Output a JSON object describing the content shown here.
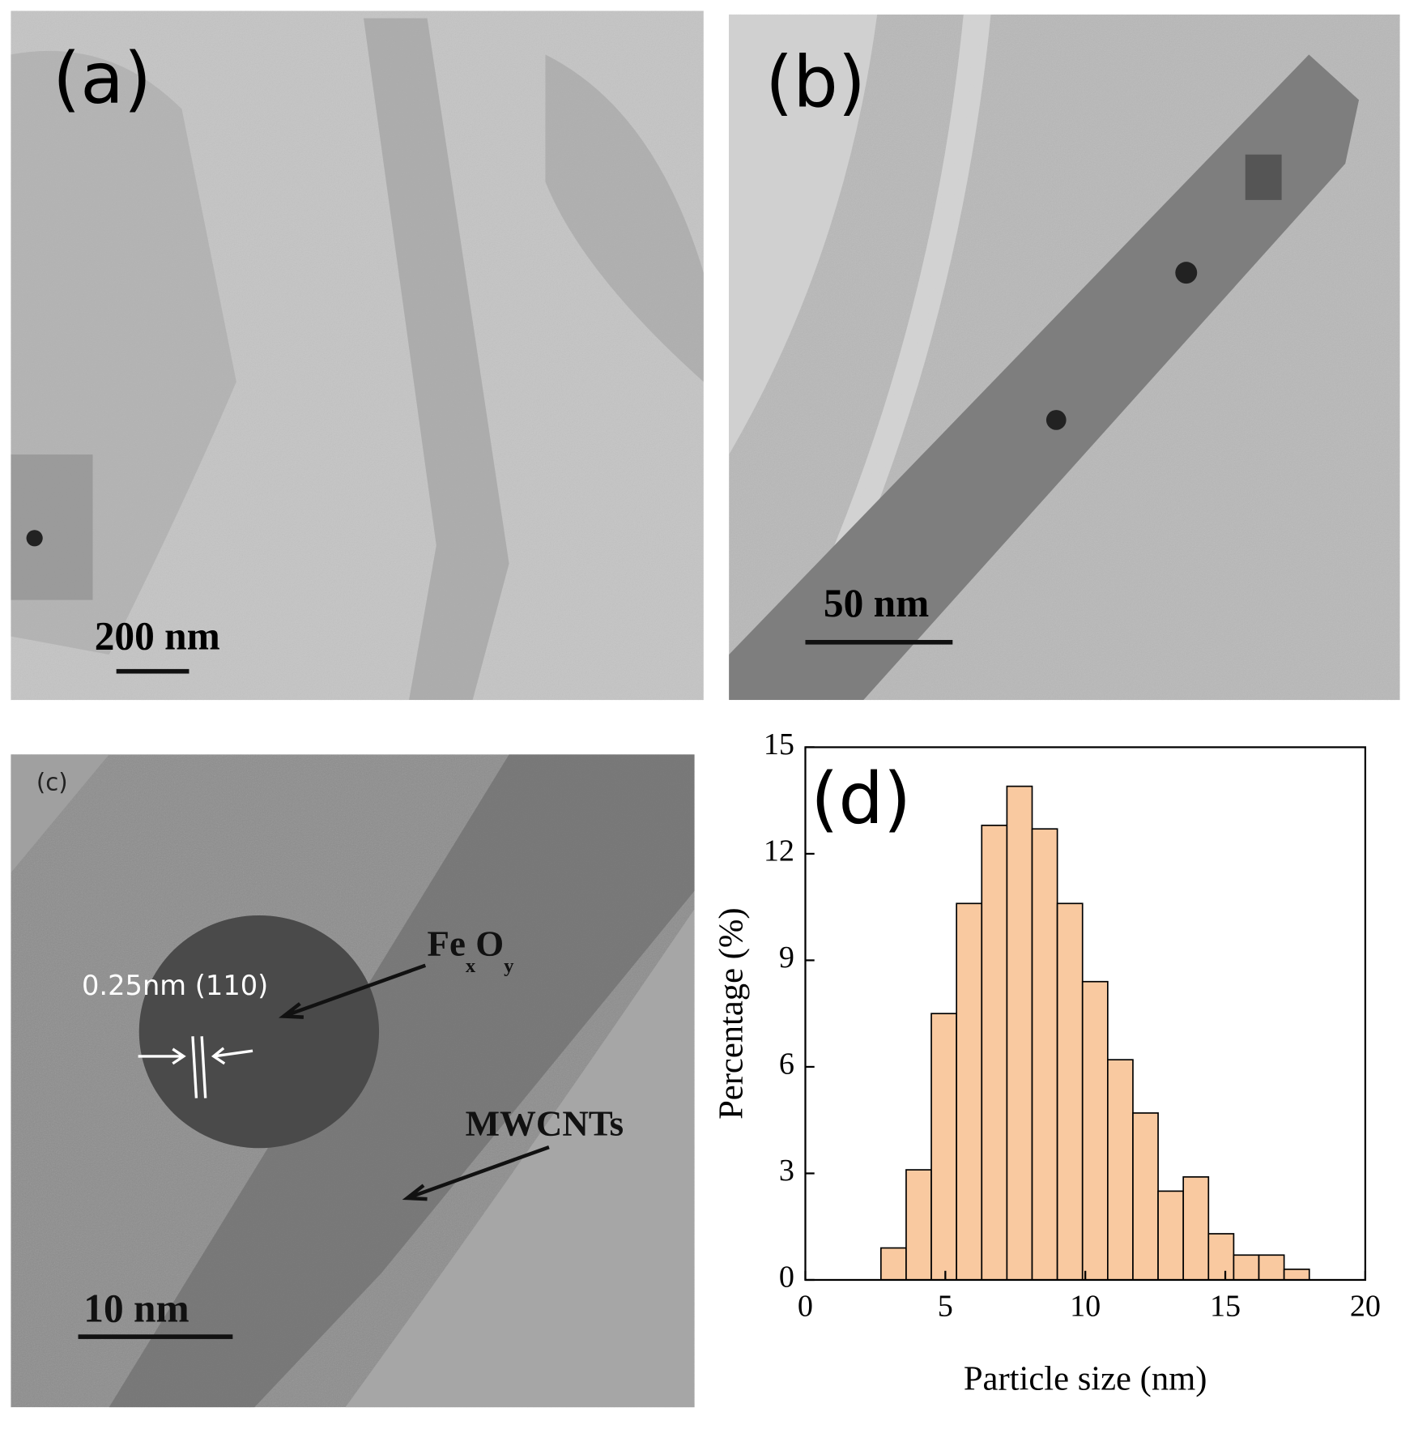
{
  "panels": {
    "a": {
      "label": "(a)",
      "scale_bar": "200 nm"
    },
    "b": {
      "label": "(b)",
      "scale_bar": "50 nm"
    },
    "c": {
      "label": "(c)",
      "scale_bar": "10 nm",
      "spacing": "0.25nm (110)",
      "particle": [
        "Fe",
        "x",
        "O",
        "y"
      ],
      "tubes": "MWCNTs"
    }
  },
  "chart_data": {
    "type": "histogram",
    "label": "(d)",
    "x_label": "Particle size (nm)",
    "y_label": "Percentage (%)",
    "bins": [
      2.7,
      3.6,
      4.5,
      5.4,
      6.3,
      7.2,
      8.1,
      9.0,
      9.9,
      10.8,
      11.7,
      12.6,
      13.5,
      14.4,
      15.3,
      16.2,
      17.1,
      18.0
    ],
    "values": [
      0.9,
      3.1,
      7.5,
      10.6,
      12.8,
      13.9,
      12.7,
      10.6,
      8.4,
      6.2,
      4.7,
      2.5,
      2.9,
      1.3,
      0.7,
      0.7,
      0.3
    ],
    "color": "#f9c9a0",
    "xlim": [
      0,
      20
    ],
    "xticks": [
      0,
      5,
      10,
      15,
      20
    ],
    "ylim": [
      0,
      15
    ],
    "yticks": [
      0,
      3,
      6,
      9,
      12,
      15
    ]
  }
}
